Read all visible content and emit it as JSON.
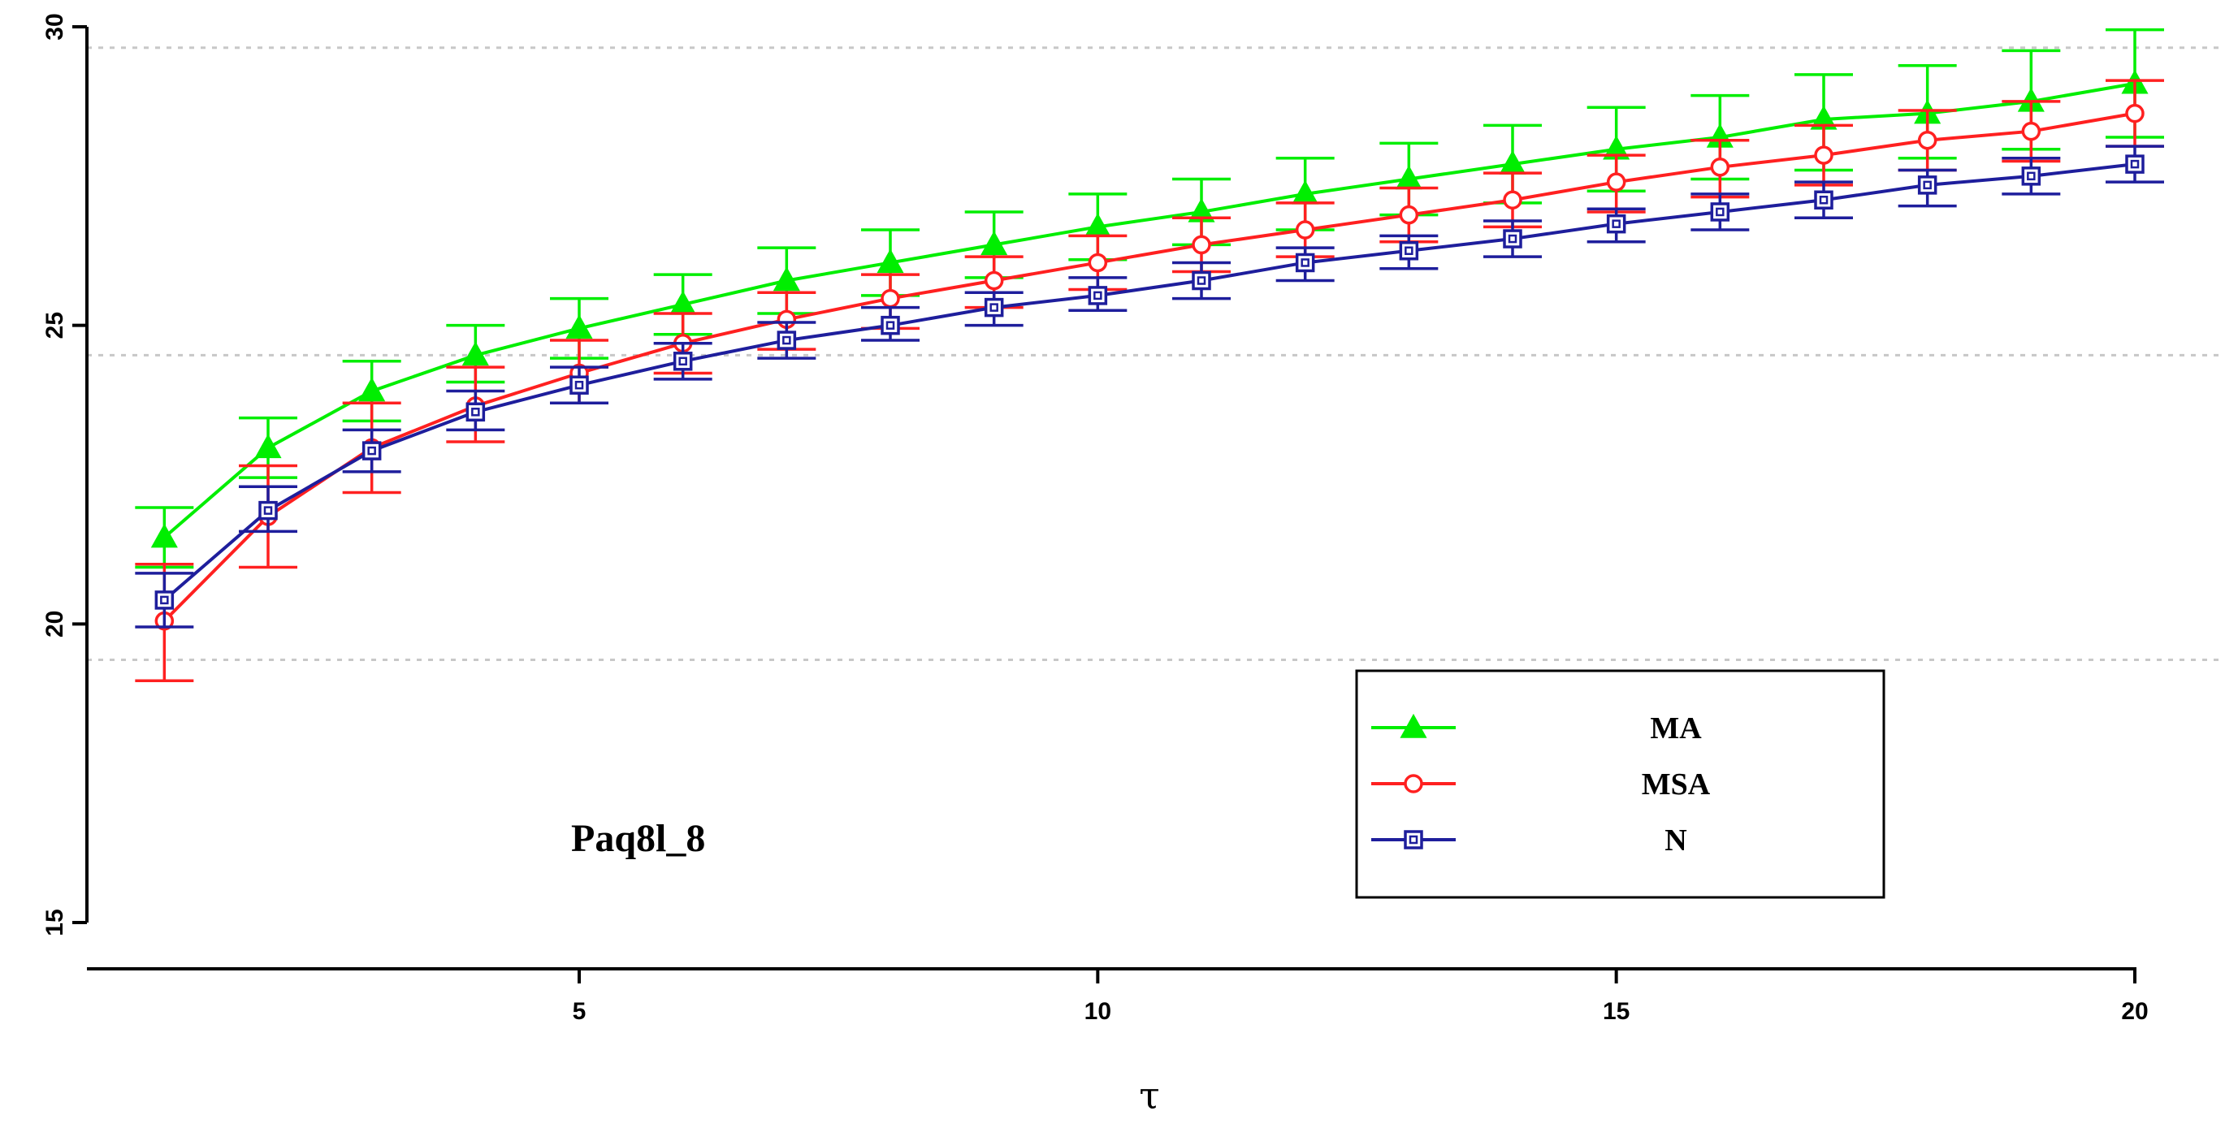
{
  "chart_data": {
    "type": "line",
    "title": "",
    "annotation": "Paq8l_8",
    "xlabel": "τ",
    "ylabel": "",
    "xlim": [
      0.9,
      20.1
    ],
    "ylim": [
      15,
      30
    ],
    "x_ticks": [
      "5",
      "10",
      "15",
      "20"
    ],
    "y_ticks": [
      "15",
      "20",
      "25",
      "30"
    ],
    "gridlines_y": [
      19.4,
      24.5,
      29.65
    ],
    "x": [
      1,
      2,
      3,
      4,
      5,
      6,
      7,
      8,
      9,
      10,
      11,
      12,
      13,
      14,
      15,
      16,
      17,
      18,
      19,
      20
    ],
    "legend_position": "bottom-right",
    "series": [
      {
        "name": "MA",
        "color": "#00ee00",
        "marker": "triangle",
        "values": [
          21.45,
          22.95,
          23.9,
          24.5,
          24.95,
          25.35,
          25.75,
          26.05,
          26.35,
          26.65,
          26.9,
          27.2,
          27.45,
          27.7,
          27.95,
          28.15,
          28.45,
          28.55,
          28.75,
          29.05
        ],
        "lower": [
          20.95,
          22.45,
          23.4,
          24.05,
          24.45,
          24.85,
          25.2,
          25.5,
          25.8,
          26.1,
          26.35,
          26.6,
          26.85,
          27.05,
          27.25,
          27.45,
          27.6,
          27.8,
          27.95,
          28.15
        ],
        "upper": [
          21.95,
          23.45,
          24.4,
          25.0,
          25.45,
          25.85,
          26.3,
          26.6,
          26.9,
          27.2,
          27.45,
          27.8,
          28.05,
          28.35,
          28.65,
          28.85,
          29.2,
          29.35,
          29.6,
          29.95
        ]
      },
      {
        "name": "MSA",
        "color": "#ff2020",
        "marker": "circle",
        "values": [
          20.05,
          21.8,
          22.95,
          23.65,
          24.2,
          24.7,
          25.1,
          25.45,
          25.75,
          26.05,
          26.35,
          26.6,
          26.85,
          27.1,
          27.4,
          27.65,
          27.85,
          28.1,
          28.25,
          28.55
        ],
        "lower": [
          19.05,
          20.95,
          22.2,
          23.05,
          23.7,
          24.2,
          24.6,
          24.95,
          25.3,
          25.6,
          25.9,
          26.15,
          26.4,
          26.65,
          26.9,
          27.15,
          27.35,
          27.6,
          27.75,
          28.0
        ],
        "upper": [
          21.0,
          22.65,
          23.7,
          24.3,
          24.75,
          25.2,
          25.55,
          25.85,
          26.15,
          26.5,
          26.8,
          27.05,
          27.3,
          27.55,
          27.85,
          28.1,
          28.35,
          28.6,
          28.75,
          29.1
        ]
      },
      {
        "name": "N",
        "color": "#1e1e9c",
        "marker": "square",
        "values": [
          20.4,
          21.9,
          22.9,
          23.55,
          24.0,
          24.4,
          24.75,
          25.0,
          25.3,
          25.5,
          25.75,
          26.05,
          26.25,
          26.45,
          26.7,
          26.9,
          27.1,
          27.35,
          27.5,
          27.7
        ],
        "lower": [
          19.95,
          21.55,
          22.55,
          23.25,
          23.7,
          24.1,
          24.45,
          24.75,
          25.0,
          25.25,
          25.45,
          25.75,
          25.95,
          26.15,
          26.4,
          26.6,
          26.8,
          27.0,
          27.2,
          27.4
        ],
        "upper": [
          20.85,
          22.3,
          23.25,
          23.9,
          24.3,
          24.7,
          25.05,
          25.3,
          25.55,
          25.8,
          26.05,
          26.3,
          26.5,
          26.75,
          26.95,
          27.2,
          27.4,
          27.6,
          27.8,
          28.0
        ]
      }
    ]
  }
}
